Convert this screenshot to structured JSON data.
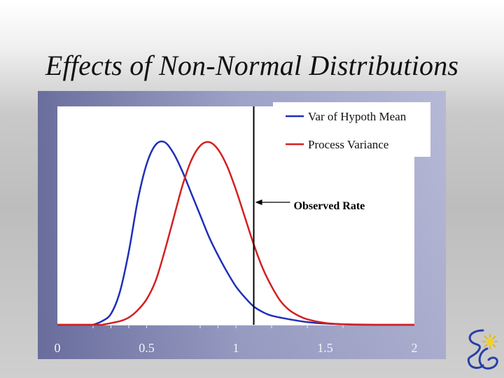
{
  "slide": {
    "title": "Effects of Non-Normal Distributions"
  },
  "colors": {
    "series1": "#1f2fb8",
    "series2": "#d42020",
    "frame": "#8a8eb8"
  },
  "chart_data": {
    "type": "line",
    "title": "",
    "xlabel": "",
    "ylabel": "",
    "xlim": [
      0,
      2
    ],
    "x_ticks": [
      "0",
      "0.5",
      "1",
      "1.5",
      "2"
    ],
    "x_tick_values": [
      0,
      0.5,
      1,
      1.5,
      2
    ],
    "grid": false,
    "legend_position": "top-right",
    "series": [
      {
        "name": "Var of Hypoth Mean",
        "color": "#1f2fb8",
        "x": [
          0.2,
          0.25,
          0.3,
          0.35,
          0.4,
          0.45,
          0.5,
          0.55,
          0.6,
          0.65,
          0.7,
          0.75,
          0.8,
          0.85,
          0.9,
          0.95,
          1.0,
          1.05,
          1.1,
          1.15,
          1.2,
          1.3,
          1.4,
          1.5,
          1.6,
          1.78
        ],
        "y": [
          0.0,
          0.02,
          0.06,
          0.18,
          0.4,
          0.68,
          0.88,
          0.985,
          1.0,
          0.94,
          0.84,
          0.72,
          0.6,
          0.48,
          0.38,
          0.29,
          0.21,
          0.15,
          0.1,
          0.07,
          0.05,
          0.03,
          0.015,
          0.007,
          0.003,
          0.0
        ]
      },
      {
        "name": "Process Variance",
        "color": "#d42020",
        "x": [
          0.25,
          0.35,
          0.4,
          0.45,
          0.5,
          0.55,
          0.6,
          0.65,
          0.7,
          0.75,
          0.8,
          0.85,
          0.9,
          0.95,
          1.0,
          1.05,
          1.1,
          1.15,
          1.2,
          1.25,
          1.3,
          1.35,
          1.4,
          1.5,
          1.6,
          1.7
        ],
        "y": [
          0.0,
          0.02,
          0.04,
          0.08,
          0.14,
          0.24,
          0.4,
          0.58,
          0.76,
          0.9,
          0.98,
          1.0,
          0.96,
          0.87,
          0.74,
          0.59,
          0.44,
          0.31,
          0.21,
          0.13,
          0.08,
          0.05,
          0.03,
          0.01,
          0.003,
          0.0
        ]
      }
    ],
    "vline": {
      "x": 1.1
    },
    "annotation": {
      "text": "Observed Rate",
      "points_to_x": 1.1
    }
  }
}
